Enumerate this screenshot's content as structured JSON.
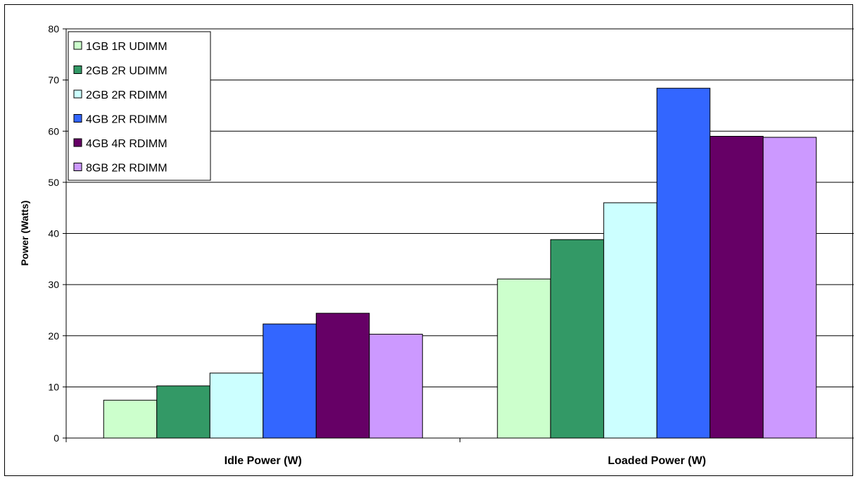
{
  "chart_data": {
    "type": "bar",
    "categories": [
      "Idle Power (W)",
      "Loaded Power (W)"
    ],
    "series": [
      {
        "name": "1GB 1R UDIMM",
        "values": [
          7.4,
          31.1
        ],
        "color": "#CCFFCC"
      },
      {
        "name": "2GB 2R UDIMM",
        "values": [
          10.2,
          38.8
        ],
        "color": "#339966"
      },
      {
        "name": "2GB 2R RDIMM",
        "values": [
          12.7,
          46.0
        ],
        "color": "#CCFFFF"
      },
      {
        "name": "4GB 2R RDIMM",
        "values": [
          22.3,
          68.4
        ],
        "color": "#3366FF"
      },
      {
        "name": "4GB 4R RDIMM",
        "values": [
          24.4,
          59.0
        ],
        "color": "#660066"
      },
      {
        "name": "8GB 2R RDIMM",
        "values": [
          20.3,
          58.8
        ],
        "color": "#CC99FF"
      }
    ],
    "title": "",
    "xlabel": "",
    "ylabel": "Power (Watts)",
    "ylim": [
      0,
      80
    ],
    "yticks": [
      0,
      10,
      20,
      30,
      40,
      50,
      60,
      70,
      80
    ],
    "grid": true,
    "legend_position": "top-left"
  }
}
